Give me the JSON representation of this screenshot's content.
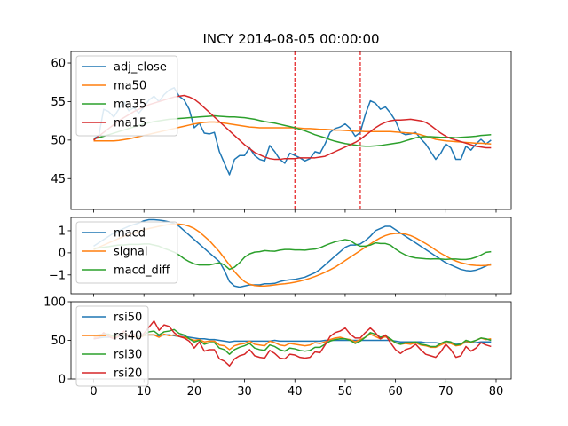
{
  "chart_data": {
    "title": "INCY 2014-08-05 00:00:00",
    "colors": {
      "c0": "#1f77b4",
      "c1": "#ff7f0e",
      "c2": "#2ca02c",
      "c3": "#d62728",
      "vline": "#e41a1c"
    },
    "x_ticks": [
      "0",
      "10",
      "20",
      "30",
      "40",
      "50",
      "60",
      "70",
      "80"
    ],
    "panels": [
      {
        "type": "line",
        "xlim": [
          -4.5,
          83
        ],
        "ylim": [
          41,
          61.5
        ],
        "yticks": [
          45,
          50,
          55,
          60
        ],
        "ytick_labels": [
          "45",
          "50",
          "55",
          "60"
        ],
        "vlines": [
          40,
          53
        ],
        "legend": "top-left",
        "series": [
          {
            "name": "adj_close",
            "color": "c0",
            "values": [
              50.2,
              50.5,
              54.0,
              53.7,
              53.0,
              54.0,
              55.0,
              53.8,
              54.2,
              53.5,
              54.3,
              55.2,
              55.7,
              55.0,
              55.9,
              56.5,
              56.8,
              55.7,
              55.2,
              54.0,
              51.6,
              52.2,
              50.9,
              50.8,
              51.0,
              48.5,
              47.0,
              45.5,
              47.5,
              48.0,
              48.0,
              49.0,
              48.0,
              47.5,
              47.3,
              49.3,
              48.5,
              47.5,
              47.0,
              48.3,
              48.0,
              47.7,
              47.3,
              47.6,
              48.5,
              48.3,
              49.5,
              51.0,
              51.5,
              51.7,
              52.1,
              51.5,
              50.5,
              51.0,
              53.3,
              55.1,
              54.8,
              54.0,
              54.3,
              53.5,
              52.5,
              51.0,
              50.7,
              50.8,
              51.0,
              50.2,
              49.5,
              48.5,
              47.5,
              48.3,
              49.5,
              49.0,
              47.5,
              47.5,
              49.2,
              48.7,
              49.5,
              50.1,
              49.5,
              50.0
            ]
          },
          {
            "name": "ma50",
            "color": "c1",
            "values": [
              49.9,
              49.9,
              49.9,
              49.9,
              49.9,
              49.95,
              50.05,
              50.15,
              50.3,
              50.45,
              50.6,
              50.75,
              50.9,
              51.05,
              51.2,
              51.35,
              51.5,
              51.65,
              51.8,
              51.95,
              52.1,
              52.2,
              52.3,
              52.35,
              52.35,
              52.3,
              52.2,
              52.1,
              52.0,
              51.9,
              51.8,
              51.7,
              51.65,
              51.6,
              51.6,
              51.6,
              51.6,
              51.6,
              51.6,
              51.6,
              51.6,
              51.55,
              51.5,
              51.5,
              51.45,
              51.4,
              51.4,
              51.35,
              51.3,
              51.3,
              51.25,
              51.2,
              51.15,
              51.15,
              51.1,
              51.1,
              51.1,
              51.1,
              51.1,
              51.1,
              51.05,
              51.0,
              50.95,
              50.9,
              50.85,
              50.7,
              50.5,
              50.3,
              50.1,
              50.0,
              49.9,
              49.85,
              49.8,
              49.75,
              49.7,
              49.65,
              49.6,
              49.6,
              49.55,
              49.5
            ]
          },
          {
            "name": "ma35",
            "color": "c2",
            "values": [
              50.2,
              50.3,
              50.5,
              50.7,
              50.9,
              51.1,
              51.3,
              51.5,
              51.7,
              51.9,
              52.1,
              52.25,
              52.4,
              52.5,
              52.6,
              52.7,
              52.75,
              52.8,
              52.85,
              52.9,
              52.95,
              53.0,
              53.05,
              53.1,
              53.15,
              53.1,
              53.05,
              53.0,
              53.0,
              52.95,
              52.9,
              52.8,
              52.7,
              52.55,
              52.4,
              52.3,
              52.2,
              52.05,
              51.9,
              51.75,
              51.6,
              51.4,
              51.2,
              50.95,
              50.7,
              50.5,
              50.3,
              50.05,
              49.85,
              49.7,
              49.55,
              49.45,
              49.35,
              49.25,
              49.2,
              49.2,
              49.25,
              49.3,
              49.4,
              49.5,
              49.6,
              49.7,
              49.9,
              50.1,
              50.3,
              50.4,
              50.45,
              50.45,
              50.4,
              50.35,
              50.35,
              50.35,
              50.3,
              50.35,
              50.4,
              50.45,
              50.5,
              50.6,
              50.65,
              50.7
            ]
          },
          {
            "name": "ma15",
            "color": "c3",
            "values": [
              50.0,
              50.5,
              51.0,
              51.5,
              52.0,
              52.5,
              52.9,
              53.3,
              53.7,
              54.0,
              54.3,
              54.6,
              54.8,
              55.0,
              55.2,
              55.4,
              55.6,
              55.7,
              55.8,
              55.6,
              55.3,
              54.8,
              54.2,
              53.6,
              53.0,
              52.4,
              51.8,
              51.2,
              50.6,
              50.0,
              49.4,
              48.9,
              48.4,
              48.1,
              47.8,
              47.6,
              47.5,
              47.5,
              47.6,
              47.6,
              47.6,
              47.7,
              47.7,
              47.7,
              47.7,
              47.8,
              47.9,
              48.2,
              48.5,
              48.8,
              49.1,
              49.4,
              49.7,
              50.1,
              50.6,
              51.1,
              51.6,
              52.0,
              52.3,
              52.5,
              52.6,
              52.6,
              52.65,
              52.7,
              52.6,
              52.5,
              52.3,
              51.9,
              51.4,
              50.9,
              50.5,
              50.2,
              50.0,
              49.8,
              49.6,
              49.4,
              49.2,
              49.1,
              49.0,
              49.0
            ]
          }
        ]
      },
      {
        "type": "line",
        "xlim": [
          -4.5,
          83
        ],
        "ylim": [
          -1.85,
          1.6
        ],
        "yticks": [
          -1,
          0,
          1
        ],
        "ytick_labels": [
          "−1",
          "0",
          "1"
        ],
        "legend": "top-left",
        "series": [
          {
            "name": "macd",
            "color": "c0",
            "values": [
              0.3,
              0.45,
              0.6,
              0.75,
              0.9,
              1.0,
              1.1,
              1.2,
              1.28,
              1.35,
              1.45,
              1.5,
              1.5,
              1.48,
              1.45,
              1.4,
              1.33,
              1.2,
              1.0,
              0.8,
              0.6,
              0.4,
              0.2,
              0.0,
              -0.2,
              -0.4,
              -0.8,
              -1.3,
              -1.5,
              -1.55,
              -1.5,
              -1.45,
              -1.45,
              -1.45,
              -1.4,
              -1.4,
              -1.38,
              -1.3,
              -1.25,
              -1.22,
              -1.2,
              -1.15,
              -1.1,
              -1.0,
              -0.9,
              -0.75,
              -0.55,
              -0.35,
              -0.15,
              0.05,
              0.25,
              0.35,
              0.35,
              0.4,
              0.55,
              0.75,
              1.0,
              1.1,
              1.2,
              1.2,
              1.05,
              0.9,
              0.75,
              0.6,
              0.45,
              0.3,
              0.15,
              0.0,
              -0.15,
              -0.3,
              -0.45,
              -0.55,
              -0.65,
              -0.75,
              -0.8,
              -0.82,
              -0.78,
              -0.7,
              -0.6,
              -0.5
            ]
          },
          {
            "name": "signal",
            "color": "c1",
            "values": [
              0.15,
              0.25,
              0.35,
              0.45,
              0.55,
              0.65,
              0.75,
              0.82,
              0.9,
              0.97,
              1.05,
              1.1,
              1.15,
              1.2,
              1.25,
              1.28,
              1.3,
              1.3,
              1.27,
              1.2,
              1.1,
              0.95,
              0.75,
              0.55,
              0.3,
              0.05,
              -0.25,
              -0.55,
              -0.85,
              -1.1,
              -1.3,
              -1.42,
              -1.48,
              -1.5,
              -1.5,
              -1.48,
              -1.45,
              -1.42,
              -1.4,
              -1.37,
              -1.33,
              -1.28,
              -1.22,
              -1.15,
              -1.07,
              -0.98,
              -0.88,
              -0.77,
              -0.65,
              -0.5,
              -0.35,
              -0.2,
              -0.05,
              0.1,
              0.25,
              0.4,
              0.55,
              0.68,
              0.78,
              0.85,
              0.88,
              0.88,
              0.85,
              0.78,
              0.68,
              0.55,
              0.42,
              0.28,
              0.12,
              -0.02,
              -0.15,
              -0.27,
              -0.37,
              -0.45,
              -0.5,
              -0.55,
              -0.57,
              -0.58,
              -0.57,
              -0.55
            ]
          },
          {
            "name": "macd_diff",
            "color": "c2",
            "values": [
              0.2,
              0.22,
              0.25,
              0.28,
              0.32,
              0.35,
              0.35,
              0.38,
              0.38,
              0.38,
              0.4,
              0.4,
              0.35,
              0.3,
              0.2,
              0.12,
              0.03,
              -0.1,
              -0.27,
              -0.4,
              -0.5,
              -0.55,
              -0.55,
              -0.55,
              -0.5,
              -0.45,
              -0.55,
              -0.75,
              -0.65,
              -0.45,
              -0.2,
              -0.05,
              0.03,
              0.05,
              0.1,
              0.08,
              0.07,
              0.12,
              0.15,
              0.15,
              0.13,
              0.13,
              0.12,
              0.15,
              0.17,
              0.23,
              0.33,
              0.42,
              0.5,
              0.55,
              0.6,
              0.55,
              0.4,
              0.3,
              0.3,
              0.35,
              0.45,
              0.42,
              0.42,
              0.35,
              0.17,
              0.02,
              -0.1,
              -0.18,
              -0.23,
              -0.25,
              -0.27,
              -0.28,
              -0.27,
              -0.28,
              -0.3,
              -0.28,
              -0.28,
              -0.3,
              -0.3,
              -0.27,
              -0.2,
              -0.1,
              0.02,
              0.05
            ]
          }
        ]
      },
      {
        "type": "line",
        "xlim": [
          -4.5,
          83
        ],
        "ylim": [
          0,
          100
        ],
        "yticks": [
          0,
          50,
          100
        ],
        "ytick_labels": [
          "0",
          "50",
          "100"
        ],
        "legend": "top-left",
        "series": [
          {
            "name": "rsi50",
            "color": "c0",
            "values": [
              52,
              53,
              54,
              54,
              55,
              55,
              56,
              56,
              56,
              56,
              56,
              57,
              57,
              56,
              57,
              57,
              56,
              55,
              55,
              54,
              53,
              52,
              52,
              51,
              51,
              50,
              49,
              48,
              49,
              49,
              49,
              49,
              49,
              49,
              49,
              49,
              50,
              49,
              49,
              49,
              49,
              49,
              49,
              49,
              49,
              49,
              50,
              50,
              50,
              50,
              50,
              50,
              50,
              50,
              50,
              50,
              50,
              50,
              50,
              50,
              49,
              48,
              48,
              48,
              48,
              48,
              47,
              47,
              47,
              46,
              47,
              47,
              46,
              46,
              47,
              47,
              47,
              48,
              48,
              48
            ]
          },
          {
            "name": "rsi40",
            "color": "c1",
            "values": [
              54,
              55,
              56,
              56,
              54,
              56,
              57,
              55,
              55,
              53,
              56,
              57,
              57,
              54,
              58,
              56,
              57,
              55,
              54,
              52,
              50,
              51,
              48,
              49,
              49,
              44,
              43,
              38,
              43,
              45,
              46,
              49,
              45,
              44,
              43,
              49,
              47,
              44,
              43,
              46,
              45,
              44,
              43,
              44,
              47,
              46,
              48,
              51,
              53,
              54,
              52,
              51,
              48,
              51,
              54,
              58,
              55,
              52,
              55,
              51,
              47,
              45,
              46,
              45,
              47,
              44,
              43,
              41,
              41,
              44,
              47,
              46,
              43,
              44,
              49,
              47,
              50,
              53,
              51,
              52
            ]
          },
          {
            "name": "rsi30",
            "color": "c2",
            "values": [
              56,
              57,
              58,
              58,
              55,
              57,
              60,
              56,
              57,
              54,
              57,
              61,
              62,
              57,
              61,
              62,
              64,
              59,
              57,
              52,
              48,
              50,
              45,
              47,
              47,
              40,
              38,
              32,
              38,
              41,
              43,
              46,
              40,
              38,
              37,
              44,
              42,
              38,
              36,
              40,
              39,
              37,
              36,
              37,
              41,
              41,
              45,
              49,
              51,
              52,
              52,
              50,
              46,
              49,
              54,
              60,
              58,
              54,
              56,
              52,
              47,
              45,
              47,
              47,
              48,
              45,
              44,
              42,
              42,
              46,
              49,
              48,
              44,
              45,
              50,
              48,
              50,
              53,
              52,
              50
            ]
          },
          {
            "name": "rsi20",
            "color": "c3",
            "values": [
              52,
              53,
              60,
              55,
              52,
              55,
              62,
              54,
              58,
              52,
              59,
              67,
              75,
              63,
              70,
              68,
              60,
              55,
              53,
              49,
              40,
              48,
              36,
              38,
              38,
              26,
              23,
              17,
              26,
              30,
              32,
              38,
              30,
              28,
              27,
              37,
              33,
              27,
              26,
              32,
              31,
              28,
              27,
              28,
              35,
              34,
              44,
              55,
              60,
              62,
              66,
              58,
              53,
              53,
              60,
              66,
              60,
              52,
              57,
              47,
              38,
              33,
              38,
              40,
              45,
              38,
              32,
              30,
              28,
              35,
              45,
              38,
              28,
              30,
              42,
              36,
              40,
              47,
              44,
              42
            ]
          }
        ]
      }
    ]
  }
}
